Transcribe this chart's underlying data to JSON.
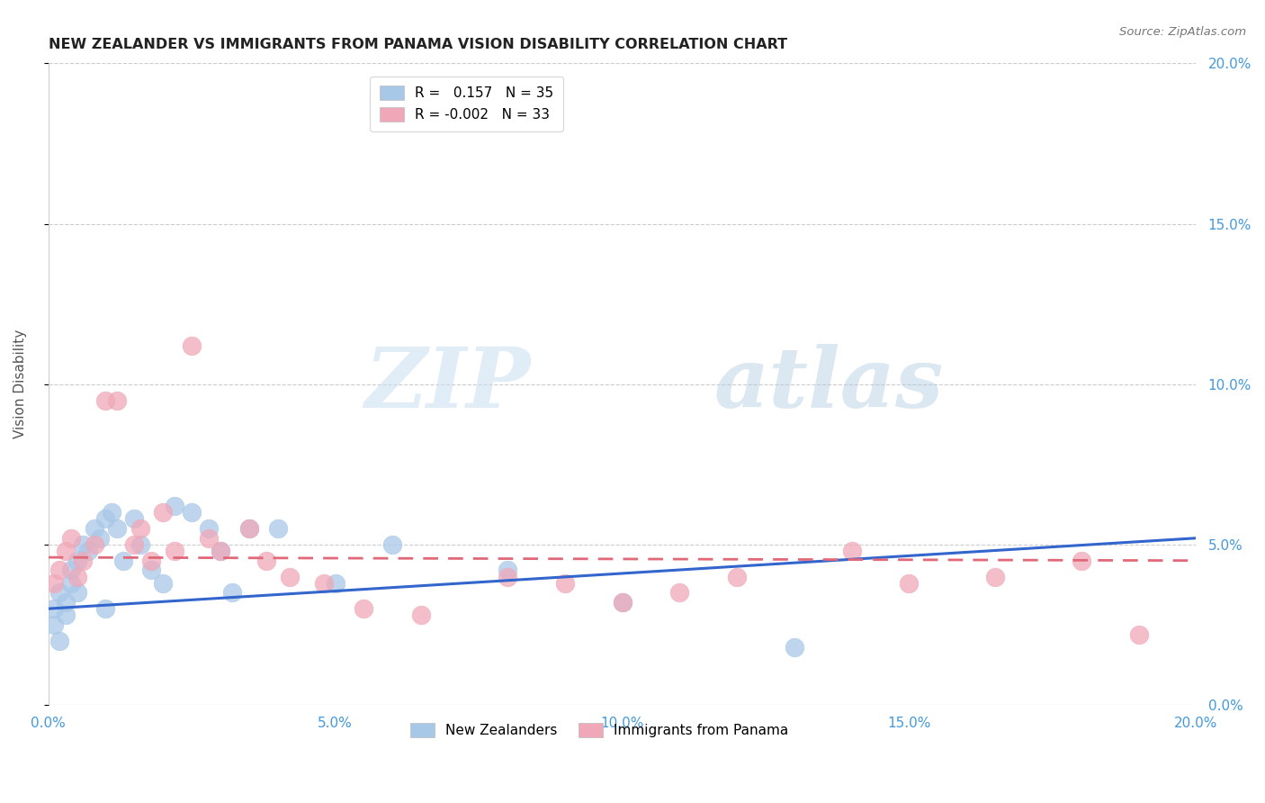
{
  "title": "NEW ZEALANDER VS IMMIGRANTS FROM PANAMA VISION DISABILITY CORRELATION CHART",
  "source": "Source: ZipAtlas.com",
  "ylabel": "Vision Disability",
  "xlim": [
    0.0,
    0.2
  ],
  "ylim": [
    0.0,
    0.2
  ],
  "xtick_labels": [
    "0.0%",
    "5.0%",
    "10.0%",
    "15.0%",
    "20.0%"
  ],
  "xtick_vals": [
    0.0,
    0.05,
    0.1,
    0.15,
    0.2
  ],
  "ytick_vals": [
    0.0,
    0.05,
    0.1,
    0.15,
    0.2
  ],
  "ytick_labels": [
    "0.0%",
    "5.0%",
    "10.0%",
    "15.0%",
    "20.0%"
  ],
  "nz_color": "#a8c8e8",
  "panama_color": "#f0a8b8",
  "nz_line_color": "#3366cc",
  "panama_line_color": "#e06878",
  "nz_R": 0.157,
  "nz_N": 35,
  "panama_R": -0.002,
  "panama_N": 33,
  "watermark_zip": "ZIP",
  "watermark_atlas": "atlas",
  "legend_label_nz": "New Zealanders",
  "legend_label_panama": "Immigrants from Panama",
  "nz_scatter_x": [
    0.001,
    0.001,
    0.002,
    0.002,
    0.003,
    0.003,
    0.004,
    0.004,
    0.005,
    0.005,
    0.006,
    0.007,
    0.008,
    0.009,
    0.01,
    0.01,
    0.011,
    0.012,
    0.013,
    0.015,
    0.016,
    0.018,
    0.02,
    0.022,
    0.025,
    0.028,
    0.03,
    0.032,
    0.035,
    0.04,
    0.05,
    0.06,
    0.08,
    0.1,
    0.13
  ],
  "nz_scatter_y": [
    0.025,
    0.03,
    0.02,
    0.035,
    0.028,
    0.032,
    0.038,
    0.042,
    0.035,
    0.045,
    0.05,
    0.048,
    0.055,
    0.052,
    0.058,
    0.03,
    0.06,
    0.055,
    0.045,
    0.058,
    0.05,
    0.042,
    0.038,
    0.062,
    0.06,
    0.055,
    0.048,
    0.035,
    0.055,
    0.055,
    0.038,
    0.05,
    0.042,
    0.032,
    0.018
  ],
  "panama_scatter_x": [
    0.001,
    0.002,
    0.003,
    0.004,
    0.005,
    0.006,
    0.008,
    0.01,
    0.012,
    0.015,
    0.016,
    0.018,
    0.02,
    0.022,
    0.025,
    0.028,
    0.03,
    0.035,
    0.038,
    0.042,
    0.048,
    0.055,
    0.065,
    0.08,
    0.09,
    0.1,
    0.11,
    0.12,
    0.14,
    0.15,
    0.165,
    0.18,
    0.19
  ],
  "panama_scatter_y": [
    0.038,
    0.042,
    0.048,
    0.052,
    0.04,
    0.045,
    0.05,
    0.095,
    0.095,
    0.05,
    0.055,
    0.045,
    0.06,
    0.048,
    0.112,
    0.052,
    0.048,
    0.055,
    0.045,
    0.04,
    0.038,
    0.03,
    0.028,
    0.04,
    0.038,
    0.032,
    0.035,
    0.04,
    0.048,
    0.038,
    0.04,
    0.045,
    0.022
  ],
  "nz_line_x": [
    0.0,
    0.2
  ],
  "nz_line_y": [
    0.03,
    0.052
  ],
  "panama_line_x": [
    0.0,
    0.2
  ],
  "panama_line_y": [
    0.046,
    0.045
  ]
}
